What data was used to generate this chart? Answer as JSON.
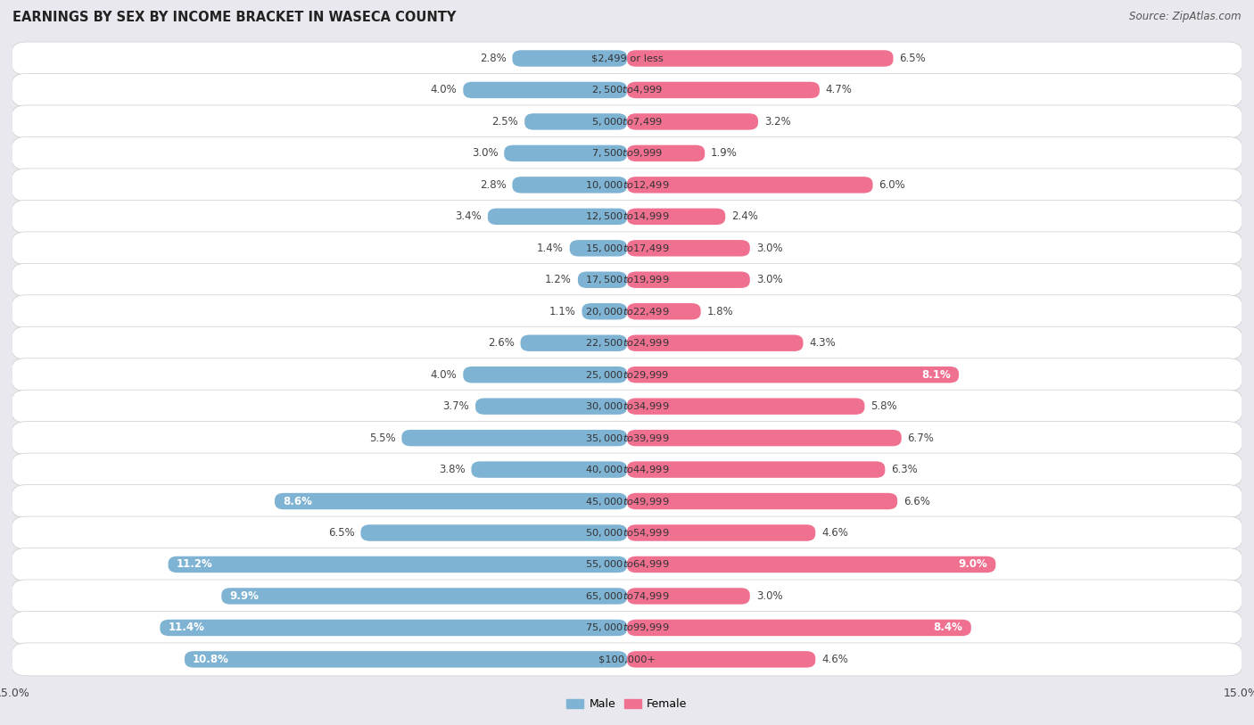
{
  "title": "EARNINGS BY SEX BY INCOME BRACKET IN WASECA COUNTY",
  "source": "Source: ZipAtlas.com",
  "categories": [
    "$2,499 or less",
    "$2,500 to $4,999",
    "$5,000 to $7,499",
    "$7,500 to $9,999",
    "$10,000 to $12,499",
    "$12,500 to $14,999",
    "$15,000 to $17,499",
    "$17,500 to $19,999",
    "$20,000 to $22,499",
    "$22,500 to $24,999",
    "$25,000 to $29,999",
    "$30,000 to $34,999",
    "$35,000 to $39,999",
    "$40,000 to $44,999",
    "$45,000 to $49,999",
    "$50,000 to $54,999",
    "$55,000 to $64,999",
    "$65,000 to $74,999",
    "$75,000 to $99,999",
    "$100,000+"
  ],
  "male_values": [
    2.8,
    4.0,
    2.5,
    3.0,
    2.8,
    3.4,
    1.4,
    1.2,
    1.1,
    2.6,
    4.0,
    3.7,
    5.5,
    3.8,
    8.6,
    6.5,
    11.2,
    9.9,
    11.4,
    10.8
  ],
  "female_values": [
    6.5,
    4.7,
    3.2,
    1.9,
    6.0,
    2.4,
    3.0,
    3.0,
    1.8,
    4.3,
    8.1,
    5.8,
    6.7,
    6.3,
    6.6,
    4.6,
    9.0,
    3.0,
    8.4,
    4.6
  ],
  "male_color": "#7fb3d3",
  "female_color": "#f07090",
  "background_color": "#e8e8ee",
  "row_color_even": "#f5f5f8",
  "row_color_odd": "#e8e8ee",
  "axis_limit": 15.0,
  "bar_height": 0.52,
  "male_inside_threshold": 8.0,
  "female_inside_threshold": 8.0,
  "label_fontsize": 8.5,
  "title_fontsize": 10.5,
  "source_fontsize": 8.5,
  "legend_fontsize": 9
}
